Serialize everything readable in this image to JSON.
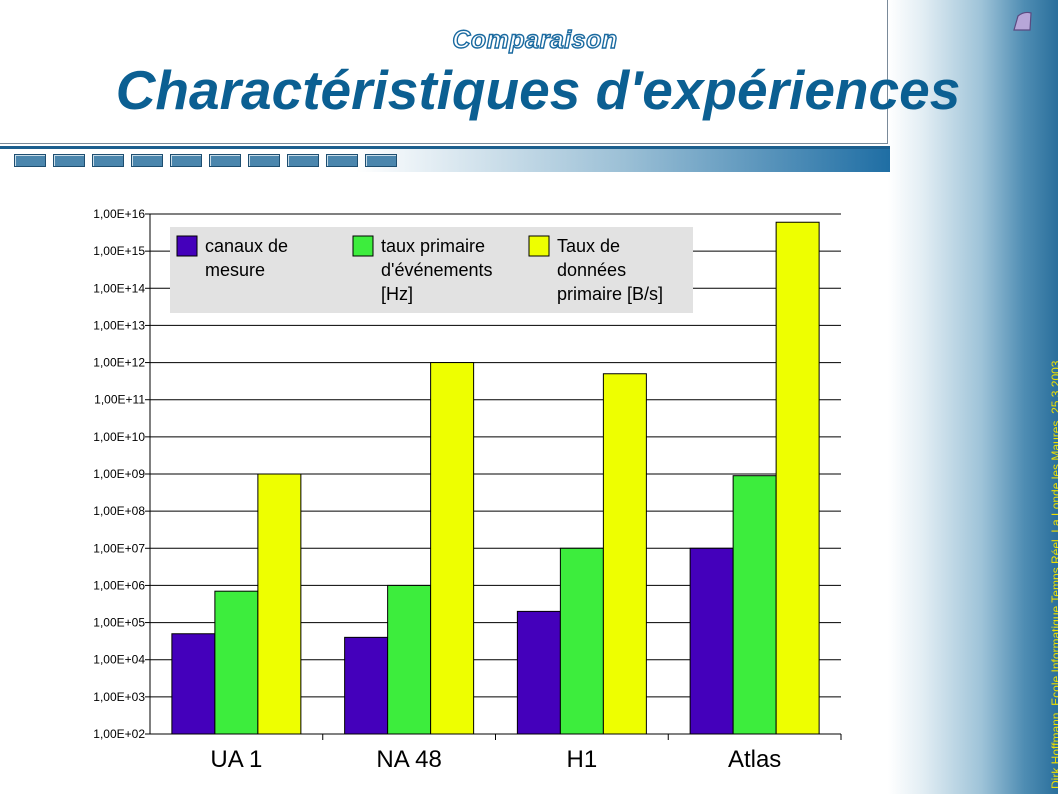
{
  "slide": {
    "subtitle": "Comparaison",
    "title": "Charactéristiques d'expériences",
    "footer_vertical": "Dirk Hoffmann, Ecole Informatique Temps Réel, La Londe les Maures, 25.3.2003"
  },
  "icons": [
    "corner-decoration-icon"
  ],
  "colors": {
    "title": "#0b5f92",
    "series": [
      "#4400bb",
      "#3ded3d",
      "#eeff00"
    ],
    "legend_bg": "#e2e2e2"
  },
  "chart_data": {
    "type": "bar",
    "y_scale": "log",
    "ylim": [
      100,
      10000000000000000
    ],
    "y_ticks": [
      "1,00E+02",
      "1,00E+03",
      "1,00E+04",
      "1,00E+05",
      "1,00E+06",
      "1,00E+07",
      "1,00E+08",
      "1,00E+09",
      "1,00E+10",
      "1,00E+11",
      "1,00E+12",
      "1,00E+13",
      "1,00E+14",
      "1,00E+15",
      "1,00E+16"
    ],
    "categories": [
      "UA 1",
      "NA 48",
      "H1",
      "Atlas"
    ],
    "series": [
      {
        "name": "canaux de mesure",
        "legend_lines": [
          "canaux de",
          "mesure"
        ],
        "values": [
          50000,
          40000,
          200000,
          10000000
        ]
      },
      {
        "name": "taux primaire d'événements [Hz]",
        "legend_lines": [
          "taux primaire",
          "d'événements",
          "[Hz]"
        ],
        "values": [
          700000,
          1000000,
          10000000,
          900000000
        ]
      },
      {
        "name": "Taux de données primaire [B/s]",
        "legend_lines": [
          "Taux de",
          "données",
          "primaire [B/s]"
        ],
        "values": [
          1000000000,
          1000000000000,
          500000000000,
          6000000000000000
        ]
      }
    ],
    "grid": true,
    "legend_position": "top-left"
  }
}
